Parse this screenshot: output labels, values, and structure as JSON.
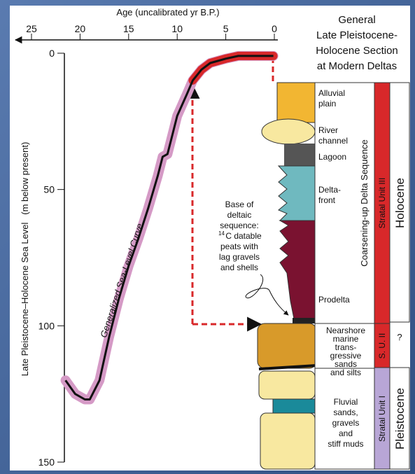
{
  "chart_data": {
    "type": "line",
    "title": [
      "General",
      "Late Pleistocene-",
      "Holocene Section",
      "at Modern Deltas"
    ],
    "x_label": "Age (uncalibrated yr B.P.)",
    "y_label": "Late Pleistocene–Holocene Sea Level   (m below present)",
    "series": [
      {
        "name": "Generalized Sea-Level Curve",
        "color": "#111111",
        "x": [
          21.5,
          20.5,
          19.5,
          19,
          18,
          17,
          16,
          15,
          14,
          13,
          12,
          11.5,
          11,
          10.5,
          10,
          9,
          8.4,
          7.5,
          6.6,
          5,
          3.7,
          2,
          0.1
        ],
        "values": [
          120,
          125,
          127,
          127,
          120,
          104,
          90,
          78,
          68,
          57,
          45,
          38,
          37,
          30,
          23,
          15,
          10,
          6,
          3.6,
          2,
          1,
          1,
          1
        ]
      }
    ],
    "xlim": [
      25,
      0
    ],
    "xticks": [
      25,
      20,
      15,
      10,
      5,
      0
    ],
    "ylim": [
      0,
      150
    ],
    "yticks": [
      0,
      50,
      100,
      150
    ],
    "annotation": {
      "before": [
        "Base of",
        "deltaic",
        "sequence:"
      ],
      "sup": "14",
      "after": [
        "C datable",
        "peats with",
        "lag gravels",
        "and shells"
      ]
    }
  },
  "section": {
    "layers": [
      {
        "lines": [
          "Alluvial",
          "plain"
        ]
      },
      {
        "lines": [
          "River",
          "channel"
        ]
      },
      {
        "lines": [
          "Lagoon"
        ]
      },
      {
        "lines": [
          "Delta-",
          "front"
        ]
      },
      {
        "lines": [
          "Prodelta"
        ]
      },
      {
        "lines": [
          "Nearshore",
          "marine",
          "trans-",
          "gressive",
          "sands",
          "and silts"
        ]
      },
      {
        "lines": [
          "Fluvial",
          "sands,",
          "gravels",
          "and",
          "stiff muds"
        ]
      }
    ],
    "sequence": "Coarsening-up Delta Sequence",
    "units": [
      "Stratal Unit III",
      "S. U. II",
      "Stratal Unit I"
    ],
    "epochs": [
      "Holocene",
      "?",
      "Pleistocene"
    ]
  }
}
